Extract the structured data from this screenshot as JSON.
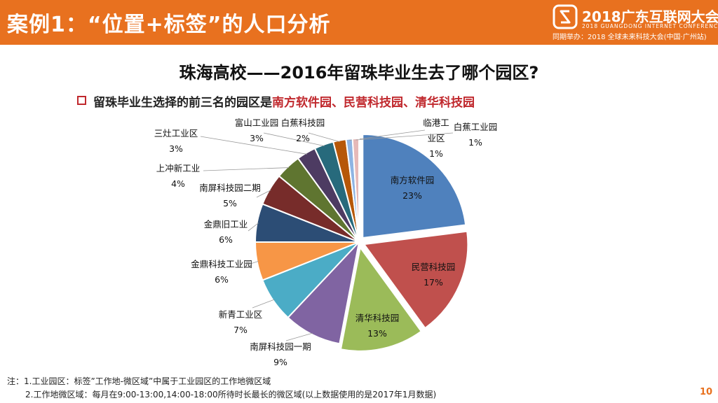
{
  "header": {
    "title": "案例1：“位置+标签”的人口分析",
    "brand_name": "2018广东互联网大会",
    "brand_en": "2018 GUANGDONG INTERNET CONFERENCE",
    "brand_sub": "同期举办：2018 全球未来科技大会(中国·广州站)"
  },
  "main_title": "珠海高校——2016年留珠毕业生去了哪个园区?",
  "bullet": {
    "prefix": "留珠毕业生选择的前三名的园区是",
    "highlight": "南方软件园、民营科技园、清华科技园"
  },
  "notes": {
    "line1": "注：1.工业园区：标签”工作地-微区域”中属于工业园区的工作地微区域",
    "line2": "2.工作地微区域：每月在9:00-13:00,14:00-18:00所待时长最长的微区域(以上数据使用的是2017年1月数据)"
  },
  "page_number": "10",
  "chart_data": {
    "type": "pie",
    "title": "",
    "slices": [
      {
        "name": "南方软件园",
        "value": 23,
        "label": "23%",
        "color": "#4f81bd"
      },
      {
        "name": "民营科技园",
        "value": 17,
        "label": "17%",
        "color": "#c0504d"
      },
      {
        "name": "清华科技园",
        "value": 13,
        "label": "13%",
        "color": "#9bbb59"
      },
      {
        "name": "南屏科技园一期",
        "value": 9,
        "label": "9%",
        "color": "#8064a2"
      },
      {
        "name": "新青工业区",
        "value": 7,
        "label": "7%",
        "color": "#4bacc6"
      },
      {
        "name": "金鼎科技工业园",
        "value": 6,
        "label": "6%",
        "color": "#f79646"
      },
      {
        "name": "金鼎旧工业",
        "value": 6,
        "label": "6%",
        "color": "#2c4d75"
      },
      {
        "name": "南屏科技园二期",
        "value": 5,
        "label": "5%",
        "color": "#772c2a"
      },
      {
        "name": "上冲新工业",
        "value": 4,
        "label": "4%",
        "color": "#5f7530"
      },
      {
        "name": "三灶工业区",
        "value": 3,
        "label": "3%",
        "color": "#4d3b62"
      },
      {
        "name": "富山工业园",
        "value": 3,
        "label": "3%",
        "color": "#276a7c"
      },
      {
        "name": "白蕉科技园",
        "value": 2,
        "label": "2%",
        "color": "#b65708"
      },
      {
        "name": "临港工业区",
        "value": 1,
        "label": "1%",
        "color": "#8eb4e3"
      },
      {
        "name": "白蕉工业园",
        "value": 1,
        "label": "1%",
        "color": "#e6b9b8"
      }
    ]
  }
}
